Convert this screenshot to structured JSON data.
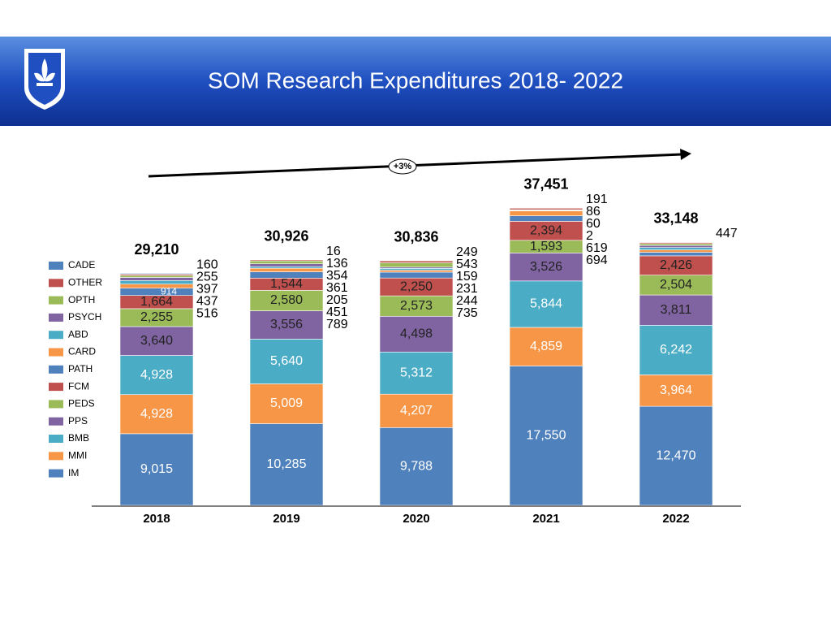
{
  "chart_data": {
    "type": "stacked-bar",
    "title": "SOM Research Expenditures 2018- 2022",
    "annotation": "+3%",
    "categories": [
      "2018",
      "2019",
      "2020",
      "2021",
      "2022"
    ],
    "ylim": [
      0,
      40000
    ],
    "totals": [
      29210,
      30926,
      30836,
      37451,
      33148
    ],
    "total_labels": [
      "29,210",
      "30,926",
      "30,836",
      "37,451",
      "33,148"
    ],
    "series": [
      {
        "name": "IM",
        "color": "#4f81bd",
        "values": [
          9015,
          10285,
          9788,
          17550,
          12470
        ],
        "value_labels": [
          "9,015",
          "10,285",
          "9,788",
          "17,550",
          "12,470"
        ]
      },
      {
        "name": "MMI",
        "color": "#f79646",
        "values": [
          4928,
          5009,
          4207,
          4859,
          3964
        ],
        "value_labels": [
          "4,928",
          "5,009",
          "4,207",
          "4,859",
          "3,964"
        ]
      },
      {
        "name": "BMB",
        "color": "#4bacc6",
        "values": [
          4928,
          5640,
          5312,
          5844,
          6242
        ],
        "value_labels": [
          "4,928",
          "5,640",
          "5,312",
          "5,844",
          "6,242"
        ]
      },
      {
        "name": "PPS",
        "color": "#8064a2",
        "values": [
          3640,
          3556,
          4498,
          3526,
          3811
        ],
        "value_labels": [
          "3,640",
          "3,556",
          "4,498",
          "3,526",
          "3,811"
        ]
      },
      {
        "name": "PEDS",
        "color": "#9bbb59",
        "values": [
          2255,
          2580,
          2573,
          1593,
          2504
        ],
        "value_labels": [
          "2,255",
          "2,580",
          "2,573",
          "1,593",
          "2,504"
        ]
      },
      {
        "name": "FCM",
        "color": "#c0504d",
        "values": [
          1664,
          1544,
          2250,
          2394,
          2426
        ],
        "value_labels": [
          "1,664",
          "1,544",
          "2,250",
          "2,394",
          "2,426"
        ]
      },
      {
        "name": "PATH",
        "color": "#4f81bd",
        "values": [
          914,
          789,
          735,
          694,
          447
        ],
        "value_labels": [
          "914",
          "789",
          "735",
          "694",
          "447"
        ]
      },
      {
        "name": "CARD",
        "color": "#f79646",
        "values": [
          516,
          451,
          244,
          619,
          300
        ],
        "value_labels": [
          "516",
          "451",
          "244",
          "619",
          null
        ]
      },
      {
        "name": "ABD",
        "color": "#4bacc6",
        "values": [
          437,
          205,
          231,
          2,
          300
        ],
        "value_labels": [
          "437",
          "205",
          "231",
          "2",
          null
        ]
      },
      {
        "name": "PSYCH",
        "color": "#8064a2",
        "values": [
          397,
          361,
          159,
          60,
          250
        ],
        "value_labels": [
          "397",
          "361",
          "159",
          "60",
          null
        ]
      },
      {
        "name": "OPTH",
        "color": "#9bbb59",
        "values": [
          255,
          354,
          543,
          86,
          234
        ],
        "value_labels": [
          "255",
          "354",
          "543",
          "86",
          null
        ]
      },
      {
        "name": "OTHER",
        "color": "#c0504d",
        "values": [
          160,
          136,
          249,
          191,
          150
        ],
        "value_labels": [
          "160",
          "136",
          "249",
          "191",
          null
        ]
      },
      {
        "name": "CADE",
        "color": "#4f81bd",
        "values": [
          101,
          16,
          47,
          33,
          50
        ],
        "value_labels": [
          null,
          "16",
          null,
          null,
          null
        ]
      }
    ]
  }
}
